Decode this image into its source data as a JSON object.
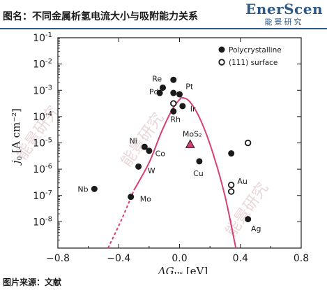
{
  "header": {
    "title": "图名：不同金属析氢电流大小与吸附能力关系",
    "brand_en": "EnerScen",
    "brand_cn": "能景研究"
  },
  "source": "图片来源：文献",
  "watermark": "能景研究",
  "colors": {
    "brand": "#2d5a86",
    "curve": "#d63f78",
    "mos2": "#d63f78",
    "points": "#1a1a1a"
  },
  "chart_data": {
    "type": "scatter",
    "xlabel_prefix": "ΔG",
    "xlabel_sub": "H*",
    "xlabel_suffix": " [eV]",
    "ylabel_main": "j",
    "ylabel_sub": "0",
    "ylabel_suffix": " [A cm⁻²]",
    "xlim": [
      -0.8,
      0.8
    ],
    "ylim_log10": [
      -9,
      -1
    ],
    "x_ticks": [
      "−0.8",
      "−0.4",
      "0.0",
      "0.4",
      "0.8"
    ],
    "x_tick_values": [
      -0.8,
      -0.4,
      0.0,
      0.4,
      0.8
    ],
    "y_ticks": [
      "10⁻⁸",
      "10⁻⁷",
      "10⁻⁶",
      "10⁻⁵",
      "10⁻⁴",
      "10⁻³",
      "10⁻²",
      "10⁻¹"
    ],
    "y_tick_values": [
      -8,
      -7,
      -6,
      -5,
      -4,
      -3,
      -2,
      -1
    ],
    "y_tick_base": "10",
    "y_tick_exps": [
      "-8",
      "-7",
      "-6",
      "-5",
      "-4",
      "-3",
      "-2",
      "-1"
    ],
    "legend": [
      {
        "label": "Polycrystalline",
        "marker": "filled-circle"
      },
      {
        "label": "(111) surface",
        "marker": "open-circle"
      }
    ],
    "legend_position": "top-right",
    "series": [
      {
        "name": "Polycrystalline",
        "marker": "filled-circle",
        "points": [
          {
            "x": -0.56,
            "log_j": -6.75
          },
          {
            "x": -0.32,
            "log_j": -7.05
          },
          {
            "x": -0.27,
            "log_j": -5.9
          },
          {
            "x": -0.23,
            "log_j": -5.15
          },
          {
            "x": -0.2,
            "log_j": -5.3
          },
          {
            "x": -0.13,
            "log_j": -3.1
          },
          {
            "x": -0.11,
            "log_j": -2.9
          },
          {
            "x": -0.04,
            "log_j": -2.6
          },
          {
            "x": -0.04,
            "log_j": -3.1
          },
          {
            "x": -0.04,
            "log_j": -3.8
          },
          {
            "x": 0.0,
            "log_j": -3.15
          },
          {
            "x": 0.02,
            "log_j": -3.6
          },
          {
            "x": 0.13,
            "log_j": -5.7
          },
          {
            "x": 0.34,
            "log_j": -5.4
          },
          {
            "x": 0.45,
            "log_j": -7.9
          }
        ]
      },
      {
        "name": "(111) surface",
        "marker": "open-circle",
        "points": [
          {
            "x": -0.04,
            "log_j": -3.5
          },
          {
            "x": 0.34,
            "log_j": -6.6
          },
          {
            "x": 0.34,
            "log_j": -6.85
          },
          {
            "x": 0.45,
            "log_j": -5.0
          }
        ]
      },
      {
        "name": "MoS₂",
        "marker": "triangle",
        "points": [
          {
            "x": 0.07,
            "log_j": -5.05
          }
        ]
      }
    ],
    "point_labels": [
      {
        "text": "Nb",
        "x": -0.67,
        "log_j": -6.75
      },
      {
        "text": "Mo",
        "x": -0.26,
        "log_j": -7.13
      },
      {
        "text": "W",
        "x": -0.21,
        "log_j": -6.05
      },
      {
        "text": "Ni",
        "x": -0.33,
        "log_j": -4.92
      },
      {
        "text": "Co",
        "x": -0.16,
        "log_j": -5.4
      },
      {
        "text": "Re",
        "x": -0.18,
        "log_j": -2.55
      },
      {
        "text": "Pd",
        "x": -0.2,
        "log_j": -3.05
      },
      {
        "text": "Pt",
        "x": 0.04,
        "log_j": -2.85
      },
      {
        "text": "Ir",
        "x": 0.07,
        "log_j": -3.7
      },
      {
        "text": "Rh",
        "x": -0.06,
        "log_j": -4.1
      },
      {
        "text": "MoS₂",
        "x": 0.02,
        "log_j": -4.65
      },
      {
        "text": "Cu",
        "x": 0.09,
        "log_j": -6.15
      },
      {
        "text": "Au",
        "x": 0.38,
        "log_j": -6.45
      },
      {
        "text": "Ag",
        "x": 0.47,
        "log_j": -8.25
      }
    ],
    "volcano_curve": {
      "description_visible": false,
      "solid_left": [
        [
          -0.3,
          -6.8
        ],
        [
          -0.2,
          -5.75
        ],
        [
          -0.12,
          -4.6
        ],
        [
          -0.05,
          -3.75
        ],
        [
          0.0,
          -3.35
        ],
        [
          0.02,
          -3.28
        ]
      ],
      "dashed_left": [
        [
          -0.47,
          -9.0
        ],
        [
          -0.38,
          -7.9
        ],
        [
          -0.3,
          -6.8
        ]
      ],
      "solid_right": [
        [
          0.02,
          -3.28
        ],
        [
          0.07,
          -3.45
        ],
        [
          0.14,
          -4.15
        ],
        [
          0.22,
          -5.4
        ],
        [
          0.3,
          -7.05
        ],
        [
          0.37,
          -9.0
        ]
      ]
    }
  }
}
